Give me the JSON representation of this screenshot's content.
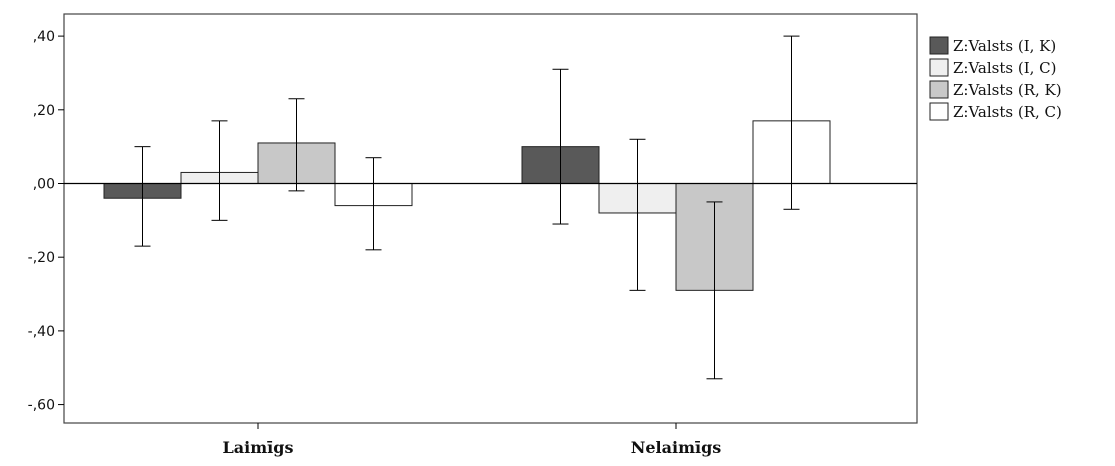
{
  "chart_data": {
    "type": "bar",
    "categories": [
      "Laimīgs",
      "Nelaimīgs"
    ],
    "series": [
      {
        "name": "Z:Valsts (I, K)",
        "color": "#595959",
        "values": [
          -0.04,
          0.1
        ],
        "err_low": [
          -0.17,
          -0.11
        ],
        "err_high": [
          0.1,
          0.31
        ]
      },
      {
        "name": "Z:Valsts (I, C)",
        "color": "#efefef",
        "values": [
          0.03,
          -0.08
        ],
        "err_low": [
          -0.1,
          -0.29
        ],
        "err_high": [
          0.17,
          0.12
        ]
      },
      {
        "name": "Z:Valsts (R, K)",
        "color": "#c8c8c8",
        "values": [
          0.11,
          -0.29
        ],
        "err_low": [
          -0.02,
          -0.53
        ],
        "err_high": [
          0.23,
          -0.05
        ]
      },
      {
        "name": "Z:Valsts (R, C)",
        "color": "#ffffff",
        "values": [
          -0.06,
          0.17
        ],
        "err_low": [
          -0.18,
          -0.07
        ],
        "err_high": [
          0.07,
          0.4
        ]
      }
    ],
    "yticks": [
      0.4,
      0.2,
      0.0,
      -0.2,
      -0.4,
      -0.6
    ],
    "ytick_labels": [
      ",40",
      ",20",
      ",00",
      "-,20",
      "-,40",
      "-,60"
    ],
    "ylim": [
      -0.65,
      0.46
    ],
    "grid": false,
    "legend_position": "right",
    "xlabel": "",
    "ylabel": "",
    "title": ""
  }
}
